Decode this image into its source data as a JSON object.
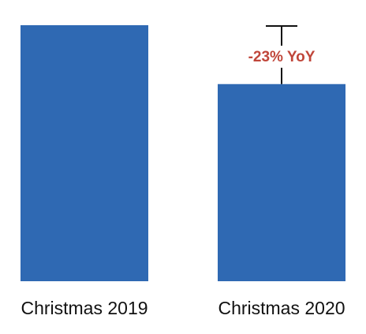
{
  "chart_data": {
    "type": "bar",
    "categories": [
      "Christmas 2019",
      "Christmas 2020"
    ],
    "values": [
      100,
      77
    ],
    "ylim": [
      0,
      100
    ],
    "grid": false,
    "legend": "none",
    "annotation": {
      "text": "-23% YoY",
      "category_index": 1,
      "from_value": 77,
      "to_value": 100
    },
    "colors": {
      "bar": "#2F69B3",
      "annotation_text": "#C0463A",
      "annotation_line": "#111111",
      "axis_text": "#111111"
    }
  }
}
